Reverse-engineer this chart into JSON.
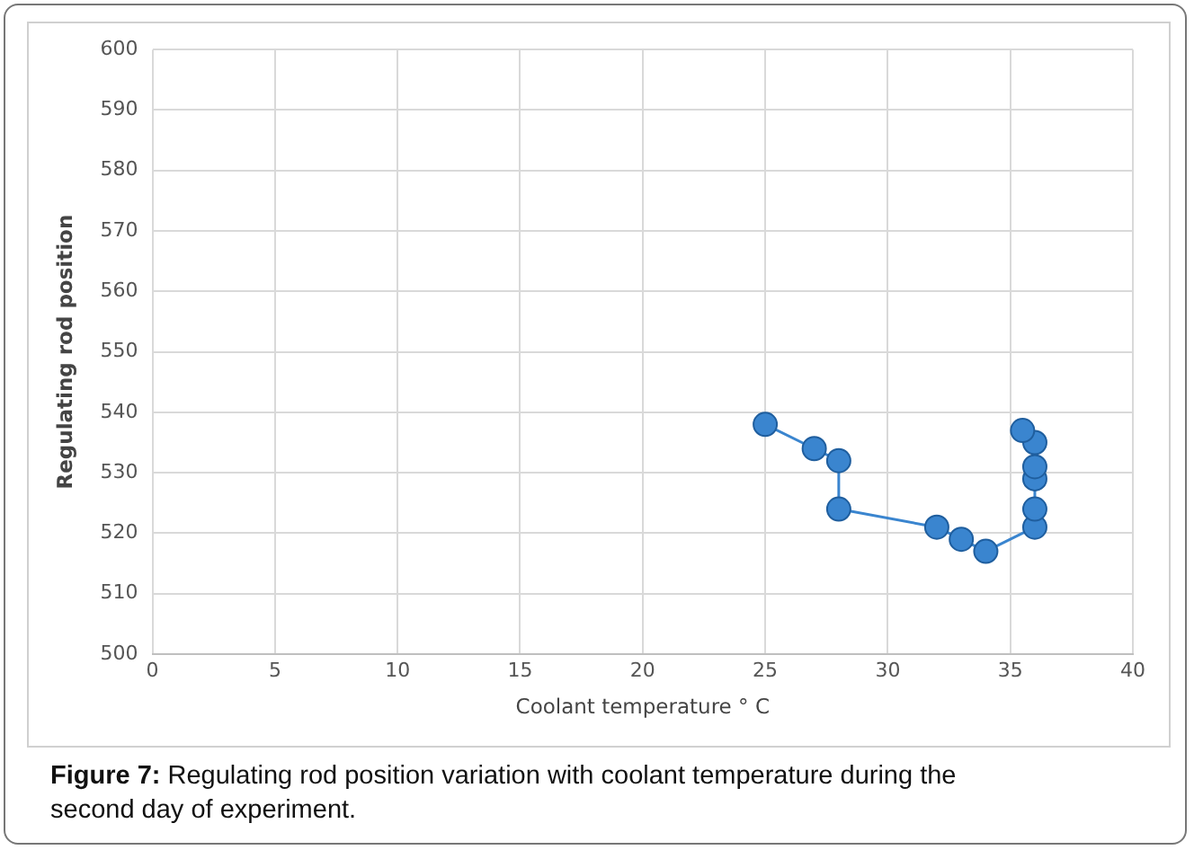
{
  "chart_data": {
    "type": "line",
    "xlabel": "Coolant temperature ° C",
    "ylabel": "Regulating rod position",
    "x": [
      25,
      27,
      28,
      28,
      32,
      33,
      34,
      36,
      36,
      36,
      36,
      36,
      35.5
    ],
    "series": [
      {
        "color": "#3a85cf",
        "values": [
          538,
          534,
          532,
          524,
          521,
          519,
          517,
          521,
          524,
          529,
          531,
          535,
          537
        ]
      }
    ],
    "xlim": [
      0,
      40
    ],
    "xticks": [
      0,
      5,
      10,
      15,
      20,
      25,
      30,
      35,
      40
    ],
    "ylim": [
      500,
      600
    ],
    "yticks": [
      500,
      510,
      520,
      530,
      540,
      550,
      560,
      570,
      580,
      590,
      600
    ],
    "grid": true,
    "legend": false,
    "marker": "circle",
    "line_style": "solid",
    "annotations": [
      "Figure 7: Regulating rod position variation with coolant temperature during the second day of experiment."
    ]
  }
}
